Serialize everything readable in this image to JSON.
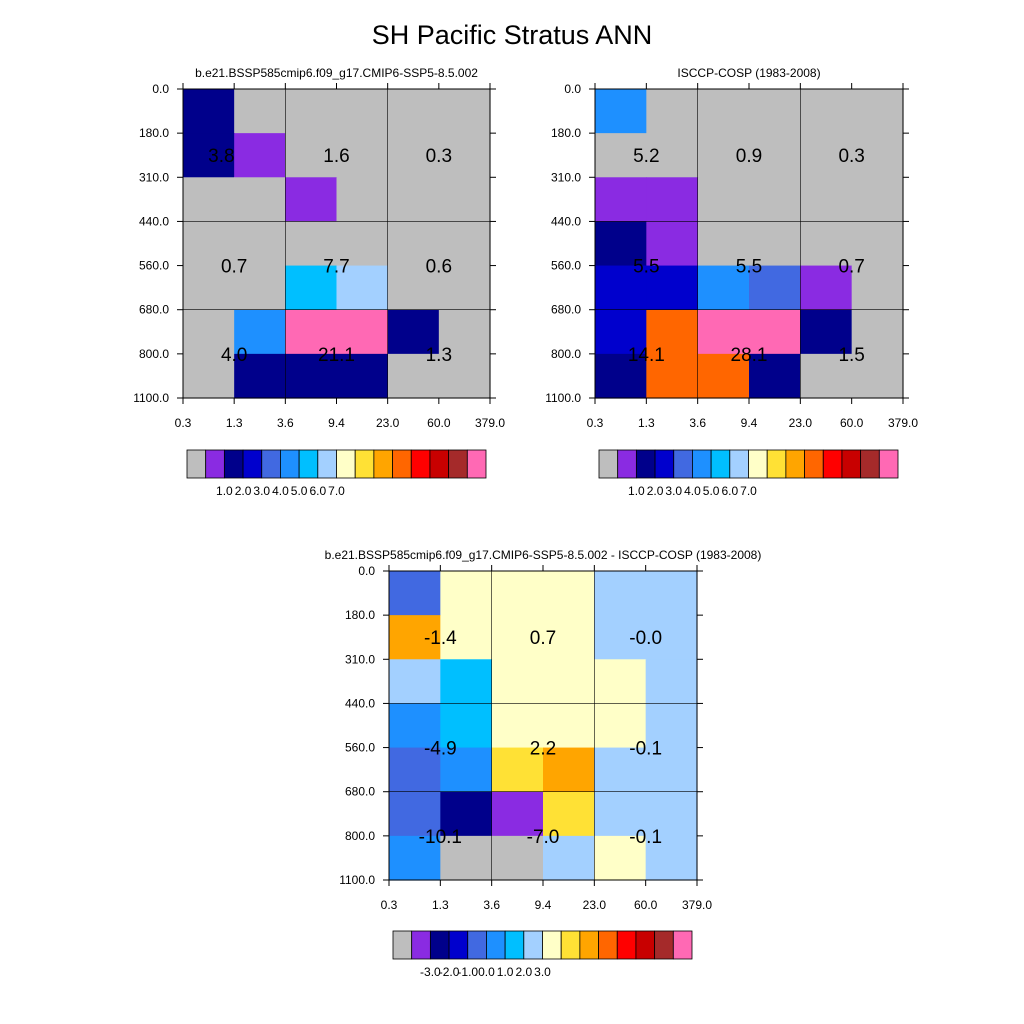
{
  "title": "SH Pacific Stratus ANN",
  "x_tick_labels": [
    "0.3",
    "1.3",
    "3.6",
    "9.4",
    "23.0",
    "60.0",
    "379.0"
  ],
  "y_tick_labels": [
    "0.0",
    "180.0",
    "310.0",
    "440.0",
    "560.0",
    "680.0",
    "800.0",
    "1100.0"
  ],
  "palette_main": [
    "#bebebe",
    "#8a2be2",
    "#00008b",
    "#0000cd",
    "#4169e1",
    "#1e90ff",
    "#00bfff",
    "#a3d0ff",
    "#ffffc8",
    "#ffe135",
    "#ffa500",
    "#ff6600",
    "#ff0000",
    "#c80000",
    "#a52a2a",
    "#ff69b4"
  ],
  "palette_diff": [
    "#bebebe",
    "#8a2be2",
    "#00008b",
    "#0000cd",
    "#4169e1",
    "#1e90ff",
    "#00bfff",
    "#a3d0ff",
    "#ffffc8",
    "#ffe135",
    "#ffa500",
    "#ff6600",
    "#ff0000",
    "#c80000",
    "#a52a2a",
    "#ff69b4"
  ],
  "chart_data": [
    {
      "type": "heatmap",
      "title": "b.e21.BSSP585cmip6.f09_g17.CMIP6-SSP5-8.5.002",
      "x_edges": [
        "0.3",
        "1.3",
        "3.6",
        "9.4",
        "23.0",
        "60.0",
        "379.0"
      ],
      "y_edges": [
        "0.0",
        "180.0",
        "310.0",
        "440.0",
        "560.0",
        "680.0",
        "800.0",
        "1100.0"
      ],
      "cells": [
        [
          2,
          0,
          0,
          0,
          0,
          0
        ],
        [
          2,
          1,
          0,
          0,
          0,
          0
        ],
        [
          0,
          0,
          1,
          0,
          0,
          0
        ],
        [
          0,
          0,
          0,
          0,
          0,
          0
        ],
        [
          0,
          0,
          6,
          7,
          0,
          0
        ],
        [
          0,
          5,
          15,
          15,
          2,
          0
        ],
        [
          0,
          2,
          2,
          2,
          0,
          0
        ]
      ],
      "annotations": [
        {
          "text": "3.8",
          "col": 0.75,
          "row": 1.5
        },
        {
          "text": "1.6",
          "col": 3,
          "row": 1.5
        },
        {
          "text": "0.3",
          "col": 5,
          "row": 1.5
        },
        {
          "text": "0.7",
          "col": 1,
          "row": 4
        },
        {
          "text": "7.7",
          "col": 3,
          "row": 4
        },
        {
          "text": "0.6",
          "col": 5,
          "row": 4
        },
        {
          "text": "4.0",
          "col": 1,
          "row": 6
        },
        {
          "text": "21.1",
          "col": 3,
          "row": 6
        },
        {
          "text": "1.3",
          "col": 5,
          "row": 6
        }
      ],
      "colorbar_labels": [
        "1.0",
        "2.0",
        "3.0",
        "4.0",
        "5.0",
        "6.0",
        "7.0"
      ],
      "colorbar": "main"
    },
    {
      "type": "heatmap",
      "title": "ISCCP-COSP (1983-2008)",
      "x_edges": [
        "0.3",
        "1.3",
        "3.6",
        "9.4",
        "23.0",
        "60.0",
        "379.0"
      ],
      "y_edges": [
        "0.0",
        "180.0",
        "310.0",
        "440.0",
        "560.0",
        "680.0",
        "800.0",
        "1100.0"
      ],
      "cells": [
        [
          5,
          0,
          0,
          0,
          0,
          0
        ],
        [
          0,
          0,
          0,
          0,
          0,
          0
        ],
        [
          1,
          1,
          0,
          0,
          0,
          0
        ],
        [
          2,
          1,
          0,
          0,
          0,
          0
        ],
        [
          3,
          3,
          5,
          4,
          1,
          0
        ],
        [
          3,
          11,
          15,
          15,
          2,
          0
        ],
        [
          2,
          11,
          11,
          2,
          0,
          0
        ]
      ],
      "annotations": [
        {
          "text": "5.2",
          "col": 1,
          "row": 1.5
        },
        {
          "text": "0.9",
          "col": 3,
          "row": 1.5
        },
        {
          "text": "0.3",
          "col": 5,
          "row": 1.5
        },
        {
          "text": "5.5",
          "col": 1,
          "row": 4
        },
        {
          "text": "5.5",
          "col": 3,
          "row": 4
        },
        {
          "text": "0.7",
          "col": 5,
          "row": 4
        },
        {
          "text": "14.1",
          "col": 1,
          "row": 6
        },
        {
          "text": "28.1",
          "col": 3,
          "row": 6
        },
        {
          "text": "1.5",
          "col": 5,
          "row": 6
        }
      ],
      "colorbar_labels": [
        "1.0",
        "2.0",
        "3.0",
        "4.0",
        "5.0",
        "6.0",
        "7.0"
      ],
      "colorbar": "main"
    },
    {
      "type": "heatmap",
      "title": "b.e21.BSSP585cmip6.f09_g17.CMIP6-SSP5-8.5.002 - ISCCP-COSP (1983-2008)",
      "x_edges": [
        "0.3",
        "1.3",
        "3.6",
        "9.4",
        "23.0",
        "60.0",
        "379.0"
      ],
      "y_edges": [
        "0.0",
        "180.0",
        "310.0",
        "440.0",
        "560.0",
        "680.0",
        "800.0",
        "1100.0"
      ],
      "cells": [
        [
          4,
          8,
          8,
          8,
          7,
          7
        ],
        [
          10,
          8,
          8,
          8,
          7,
          7
        ],
        [
          7,
          6,
          8,
          8,
          8,
          7
        ],
        [
          5,
          6,
          8,
          8,
          8,
          7
        ],
        [
          4,
          5,
          9,
          10,
          7,
          7
        ],
        [
          4,
          2,
          1,
          9,
          7,
          7
        ],
        [
          5,
          0,
          0,
          7,
          8,
          7
        ]
      ],
      "annotations": [
        {
          "text": "-1.4",
          "col": 1,
          "row": 1.5
        },
        {
          "text": "0.7",
          "col": 3,
          "row": 1.5
        },
        {
          "text": "-0.0",
          "col": 5,
          "row": 1.5
        },
        {
          "text": "-4.9",
          "col": 1,
          "row": 4
        },
        {
          "text": "2.2",
          "col": 3,
          "row": 4
        },
        {
          "text": "-0.1",
          "col": 5,
          "row": 4
        },
        {
          "text": "-10.1",
          "col": 1,
          "row": 6
        },
        {
          "text": "-7.0",
          "col": 3,
          "row": 6
        },
        {
          "text": "-0.1",
          "col": 5,
          "row": 6
        }
      ],
      "colorbar_labels": [
        "-3.0",
        "-2.0",
        "-1.0",
        "0.0",
        "1.0",
        "2.0",
        "3.0"
      ],
      "colorbar": "diff"
    }
  ]
}
